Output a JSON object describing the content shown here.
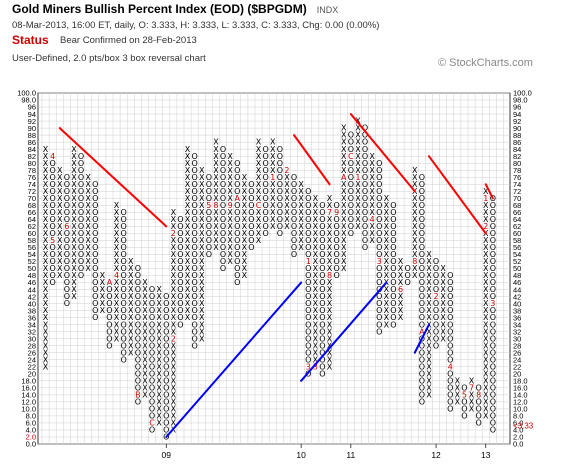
{
  "header": {
    "title": "Gold Miners Bullish Percent Index (EOD) ($BPGDM)",
    "exchange": "INDX",
    "ohlc": "08-Mar-2013, 16:00 ET, daily, O: 3.333, H: 3.333, L: 3.333, C: 3.333, Chg: 0.00 (0.00%)",
    "status_label": "Status",
    "status_text": "Bear Confirmed on 28-Feb-2013",
    "chart_type": "User-Defined, 2.0 pts/box 3 box reversal chart",
    "watermark": "© StockCharts.com"
  },
  "chart_data": {
    "type": "point-and-figure",
    "box_size": 2,
    "reversal": 3,
    "ylim": [
      0,
      100
    ],
    "y_ticks": [
      "0.0",
      "2.0",
      "4.0",
      "6.0",
      "8.0",
      "10.0",
      "12.0",
      "14.0",
      "16.0",
      "18.0",
      "20",
      "22",
      "24",
      "26",
      "28",
      "30",
      "32",
      "34",
      "36",
      "38",
      "40",
      "42",
      "44",
      "46",
      "48",
      "50",
      "52",
      "54",
      "56",
      "58",
      "60",
      "62",
      "64",
      "66",
      "68",
      "70",
      "72",
      "74",
      "76",
      "78",
      "80",
      "82",
      "84",
      "86",
      "88",
      "90",
      "92",
      "94",
      "96",
      "98.0",
      "100.0"
    ],
    "left_axis_highlight": {
      "label": "2.0",
      "color": "#cc0000"
    },
    "last_value_label": "<3.33",
    "last_value_color": "#cc0000",
    "x_labels": [
      {
        "label": "09",
        "col": 17
      },
      {
        "label": "10",
        "col": 36
      },
      {
        "label": "11",
        "col": 43
      },
      {
        "label": "12",
        "col": 55
      },
      {
        "label": "13",
        "col": 62
      }
    ],
    "columns": [
      {
        "t": "X",
        "lo": 22,
        "hi": 84
      },
      {
        "t": "O",
        "lo": 46,
        "hi": 82
      },
      {
        "t": "X",
        "lo": 48,
        "hi": 78
      },
      {
        "t": "O",
        "lo": 40,
        "hi": 76
      },
      {
        "t": "X",
        "lo": 42,
        "hi": 84
      },
      {
        "t": "O",
        "lo": 48,
        "hi": 82
      },
      {
        "t": "X",
        "lo": 50,
        "hi": 76
      },
      {
        "t": "O",
        "lo": 36,
        "hi": 74
      },
      {
        "t": "X",
        "lo": 38,
        "hi": 48
      },
      {
        "t": "O",
        "lo": 28,
        "hi": 46
      },
      {
        "t": "X",
        "lo": 30,
        "hi": 68
      },
      {
        "t": "O",
        "lo": 24,
        "hi": 66
      },
      {
        "t": "X",
        "lo": 26,
        "hi": 52
      },
      {
        "t": "O",
        "lo": 12,
        "hi": 50
      },
      {
        "t": "X",
        "lo": 14,
        "hi": 46
      },
      {
        "t": "O",
        "lo": 4,
        "hi": 44
      },
      {
        "t": "X",
        "lo": 6,
        "hi": 44
      },
      {
        "t": "O",
        "lo": 2,
        "hi": 42
      },
      {
        "t": "X",
        "lo": 4,
        "hi": 66
      },
      {
        "t": "O",
        "lo": 34,
        "hi": 64
      },
      {
        "t": "X",
        "lo": 36,
        "hi": 84
      },
      {
        "t": "O",
        "lo": 28,
        "hi": 82
      },
      {
        "t": "X",
        "lo": 30,
        "hi": 78
      },
      {
        "t": "O",
        "lo": 54,
        "hi": 76
      },
      {
        "t": "X",
        "lo": 56,
        "hi": 86
      },
      {
        "t": "O",
        "lo": 50,
        "hi": 84
      },
      {
        "t": "X",
        "lo": 52,
        "hi": 82
      },
      {
        "t": "O",
        "lo": 46,
        "hi": 80
      },
      {
        "t": "X",
        "lo": 48,
        "hi": 76
      },
      {
        "t": "O",
        "lo": 56,
        "hi": 74
      },
      {
        "t": "X",
        "lo": 58,
        "hi": 86
      },
      {
        "t": "O",
        "lo": 60,
        "hi": 84
      },
      {
        "t": "X",
        "lo": 62,
        "hi": 86
      },
      {
        "t": "O",
        "lo": 60,
        "hi": 84
      },
      {
        "t": "X",
        "lo": 62,
        "hi": 78
      },
      {
        "t": "O",
        "lo": 54,
        "hi": 76
      },
      {
        "t": "X",
        "lo": 56,
        "hi": 74
      },
      {
        "t": "O",
        "lo": 20,
        "hi": 72
      },
      {
        "t": "X",
        "lo": 22,
        "hi": 70
      },
      {
        "t": "O",
        "lo": 20,
        "hi": 68
      },
      {
        "t": "X",
        "lo": 22,
        "hi": 70
      },
      {
        "t": "O",
        "lo": 48,
        "hi": 68
      },
      {
        "t": "X",
        "lo": 50,
        "hi": 90
      },
      {
        "t": "O",
        "lo": 60,
        "hi": 88
      },
      {
        "t": "X",
        "lo": 62,
        "hi": 92
      },
      {
        "t": "O",
        "lo": 56,
        "hi": 90
      },
      {
        "t": "X",
        "lo": 58,
        "hi": 82
      },
      {
        "t": "O",
        "lo": 32,
        "hi": 80
      },
      {
        "t": "X",
        "lo": 34,
        "hi": 70
      },
      {
        "t": "O",
        "lo": 34,
        "hi": 68
      },
      {
        "t": "X",
        "lo": 36,
        "hi": 52
      },
      {
        "t": "O",
        "lo": 46,
        "hi": 50
      },
      {
        "t": "X",
        "lo": 48,
        "hi": 78
      },
      {
        "t": "O",
        "lo": 12,
        "hi": 76
      },
      {
        "t": "X",
        "lo": 14,
        "hi": 54
      },
      {
        "t": "O",
        "lo": 28,
        "hi": 52
      },
      {
        "t": "X",
        "lo": 30,
        "hi": 50
      },
      {
        "t": "O",
        "lo": 10,
        "hi": 48
      },
      {
        "t": "X",
        "lo": 12,
        "hi": 18
      },
      {
        "t": "O",
        "lo": 8,
        "hi": 16
      },
      {
        "t": "X",
        "lo": 10,
        "hi": 18
      },
      {
        "t": "O",
        "lo": 6,
        "hi": 16
      },
      {
        "t": "X",
        "lo": 8,
        "hi": 72
      },
      {
        "t": "O",
        "lo": 4,
        "hi": 70
      }
    ],
    "month_marks": [
      {
        "col": 1,
        "v": 82,
        "m": "4"
      },
      {
        "col": 1,
        "v": 58,
        "m": "5"
      },
      {
        "col": 3,
        "v": 62,
        "m": "6"
      },
      {
        "col": 6,
        "v": 40,
        "m": "8"
      },
      {
        "col": 9,
        "v": 46,
        "m": "A"
      },
      {
        "col": 10,
        "v": 48,
        "m": "4"
      },
      {
        "col": 13,
        "v": 14,
        "m": "B"
      },
      {
        "col": 15,
        "v": 6,
        "m": "C"
      },
      {
        "col": 17,
        "v": 72,
        "m": "1"
      },
      {
        "col": 18,
        "v": 60,
        "m": "2"
      },
      {
        "col": 18,
        "v": 30,
        "m": "2"
      },
      {
        "col": 22,
        "v": 84,
        "m": "4"
      },
      {
        "col": 23,
        "v": 68,
        "m": "5"
      },
      {
        "col": 23,
        "v": 78,
        "m": "6"
      },
      {
        "col": 24,
        "v": 68,
        "m": "8"
      },
      {
        "col": 26,
        "v": 68,
        "m": "9"
      },
      {
        "col": 27,
        "v": 70,
        "m": "A"
      },
      {
        "col": 30,
        "v": 68,
        "m": "C"
      },
      {
        "col": 32,
        "v": 76,
        "m": "1"
      },
      {
        "col": 34,
        "v": 78,
        "m": "2"
      },
      {
        "col": 37,
        "v": 52,
        "m": "1"
      },
      {
        "col": 37,
        "v": 22,
        "m": "3"
      },
      {
        "col": 38,
        "v": 22,
        "m": "3"
      },
      {
        "col": 40,
        "v": 66,
        "m": "7"
      },
      {
        "col": 40,
        "v": 48,
        "m": "8"
      },
      {
        "col": 41,
        "v": 66,
        "m": "9"
      },
      {
        "col": 42,
        "v": 76,
        "m": "A"
      },
      {
        "col": 43,
        "v": 82,
        "m": "C"
      },
      {
        "col": 44,
        "v": 76,
        "m": "1"
      },
      {
        "col": 46,
        "v": 64,
        "m": "4"
      },
      {
        "col": 47,
        "v": 52,
        "m": "3"
      },
      {
        "col": 50,
        "v": 44,
        "m": "6"
      },
      {
        "col": 52,
        "v": 52,
        "m": "8"
      },
      {
        "col": 53,
        "v": 32,
        "m": "A"
      },
      {
        "col": 54,
        "v": 12,
        "m": "1"
      },
      {
        "col": 55,
        "v": 42,
        "m": "2"
      },
      {
        "col": 56,
        "v": 52,
        "m": "3"
      },
      {
        "col": 57,
        "v": 22,
        "m": "4"
      },
      {
        "col": 59,
        "v": 14,
        "m": "5"
      },
      {
        "col": 60,
        "v": 16,
        "m": "7"
      },
      {
        "col": 61,
        "v": 14,
        "m": "8"
      },
      {
        "col": 62,
        "v": 70,
        "m": "1"
      },
      {
        "col": 62,
        "v": 62,
        "m": "2"
      },
      {
        "col": 63,
        "v": 40,
        "m": "3"
      }
    ],
    "trendlines": [
      {
        "color": "#ff0000",
        "from": [
          2,
          90
        ],
        "to": [
          17,
          62
        ]
      },
      {
        "color": "#ff0000",
        "from": [
          35,
          88
        ],
        "to": [
          40,
          74
        ]
      },
      {
        "color": "#ff0000",
        "from": [
          43,
          94
        ],
        "to": [
          52,
          72
        ]
      },
      {
        "color": "#ff0000",
        "from": [
          54,
          82
        ],
        "to": [
          62,
          60
        ]
      },
      {
        "color": "#ff0000",
        "from": [
          62,
          74
        ],
        "to": [
          63,
          70
        ]
      },
      {
        "color": "#0000ff",
        "from": [
          17,
          2
        ],
        "to": [
          36,
          46
        ]
      },
      {
        "color": "#0000ff",
        "from": [
          36,
          18
        ],
        "to": [
          48,
          46
        ]
      },
      {
        "color": "#0000ff",
        "from": [
          52,
          26
        ],
        "to": [
          54,
          34
        ]
      }
    ]
  }
}
